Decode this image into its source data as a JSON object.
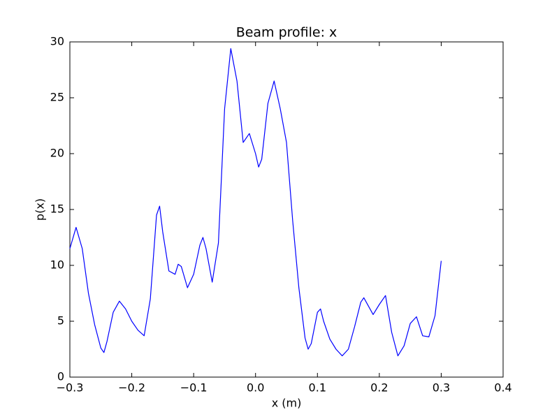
{
  "chart_data": {
    "type": "line",
    "title": "Beam profile: x",
    "x_label": "x (m)",
    "y_label": "p(x)",
    "xlim": [
      -0.3,
      0.4
    ],
    "ylim": [
      0,
      30
    ],
    "xticks": [
      {
        "value": -0.3,
        "label": "−0.3"
      },
      {
        "value": -0.2,
        "label": "−0.2"
      },
      {
        "value": -0.1,
        "label": "−0.1"
      },
      {
        "value": 0,
        "label": "0.0"
      },
      {
        "value": 0.1,
        "label": "0.1"
      },
      {
        "value": 0.2,
        "label": "0.2"
      },
      {
        "value": 0.3,
        "label": "0.3"
      },
      {
        "value": 0.4,
        "label": "0.4"
      }
    ],
    "yticks": [
      0,
      5,
      10,
      15,
      20,
      25,
      30
    ],
    "grid": false,
    "series": [
      {
        "color": "#0000ff",
        "x": [
          -0.3,
          -0.29,
          -0.28,
          -0.27,
          -0.26,
          -0.25,
          -0.245,
          -0.24,
          -0.23,
          -0.22,
          -0.21,
          -0.2,
          -0.19,
          -0.18,
          -0.17,
          -0.16,
          -0.155,
          -0.15,
          -0.14,
          -0.13,
          -0.125,
          -0.12,
          -0.11,
          -0.1,
          -0.09,
          -0.085,
          -0.08,
          -0.07,
          -0.06,
          -0.05,
          -0.04,
          -0.03,
          -0.02,
          -0.01,
          0,
          0.005,
          0.01,
          0.02,
          0.03,
          0.04,
          0.05,
          0.06,
          0.07,
          0.08,
          0.085,
          0.09,
          0.1,
          0.105,
          0.11,
          0.12,
          0.13,
          0.14,
          0.15,
          0.16,
          0.17,
          0.175,
          0.18,
          0.19,
          0.2,
          0.21,
          0.22,
          0.23,
          0.24,
          0.25,
          0.26,
          0.27,
          0.28,
          0.29,
          0.3
        ],
        "values": [
          11.5,
          13.4,
          11.5,
          7.5,
          4.7,
          2.6,
          2.2,
          3.2,
          5.8,
          6.8,
          6.1,
          5.0,
          4.2,
          3.7,
          7,
          14.5,
          15.3,
          13,
          9.5,
          9.2,
          10.1,
          9.9,
          8.0,
          9.2,
          11.8,
          12.5,
          11.5,
          8.5,
          12,
          24,
          29.4,
          26.5,
          21.0,
          21.8,
          20,
          18.8,
          19.5,
          24.5,
          26.5,
          24,
          21,
          14,
          8,
          3.5,
          2.5,
          3,
          5.8,
          6.1,
          5.0,
          3.4,
          2.5,
          1.9,
          2.5,
          4.5,
          6.7,
          7.1,
          6.6,
          5.6,
          6.5,
          7.3,
          4.0,
          1.9,
          2.8,
          4.8,
          5.4,
          3.7,
          3.6,
          5.5,
          10.4
        ]
      }
    ]
  }
}
